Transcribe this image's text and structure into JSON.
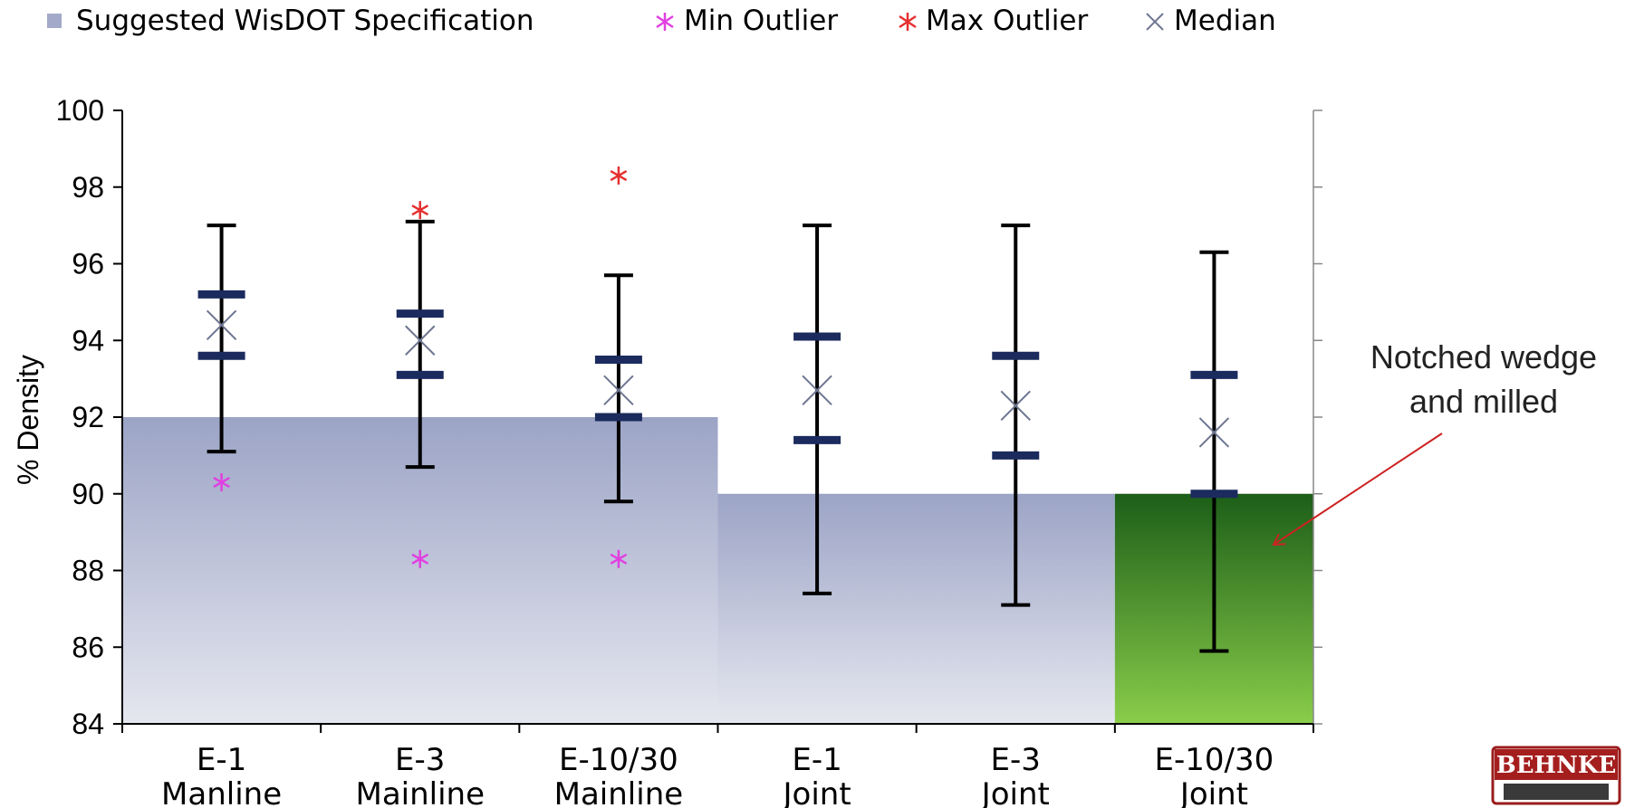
{
  "chart_data": {
    "type": "box",
    "ylabel": "% Density",
    "xlabel": "",
    "ylim": [
      84,
      100
    ],
    "yticks": [
      84,
      86,
      88,
      90,
      92,
      94,
      96,
      98,
      100
    ],
    "legend": {
      "placement": "top",
      "entries": [
        {
          "name": "Suggested WisDOT Specification",
          "marker": "square",
          "color": "#a3aac9"
        },
        {
          "name": "Min Outlier",
          "marker": "asterisk",
          "color": "#e040e0"
        },
        {
          "name": "Max Outlier",
          "marker": "asterisk",
          "color": "#e53030"
        },
        {
          "name": "Median",
          "marker": "x",
          "color": "#6e7590"
        }
      ]
    },
    "categories": [
      {
        "line1": "E-1",
        "line2": "Manline"
      },
      {
        "line1": "E-3",
        "line2": "Mainline"
      },
      {
        "line1": "E-10/30",
        "line2": "Mainline"
      },
      {
        "line1": "E-1",
        "line2": "Joint"
      },
      {
        "line1": "E-3",
        "line2": "Joint"
      },
      {
        "line1": "E-10/30",
        "line2": "Joint"
      }
    ],
    "specification": [
      {
        "categories": [
          0,
          1,
          2
        ],
        "value": 92,
        "color": "#a3aac9"
      },
      {
        "categories": [
          3,
          4
        ],
        "value": 90,
        "color": "#a3aac9"
      },
      {
        "categories": [
          5
        ],
        "value": 90,
        "color": "#5aa232"
      }
    ],
    "boxes": [
      {
        "whisker_low": 91.1,
        "q1": 93.6,
        "median": 94.4,
        "q3": 95.2,
        "whisker_high": 97.0,
        "min_outlier": 90.3,
        "max_outlier": null
      },
      {
        "whisker_low": 90.7,
        "q1": 93.1,
        "median": 94.0,
        "q3": 94.7,
        "whisker_high": 97.1,
        "min_outlier": 88.3,
        "max_outlier": 97.4
      },
      {
        "whisker_low": 89.8,
        "q1": 92.0,
        "median": 92.7,
        "q3": 93.5,
        "whisker_high": 95.7,
        "min_outlier": 88.3,
        "max_outlier": 98.3
      },
      {
        "whisker_low": 87.4,
        "q1": 91.4,
        "median": 92.7,
        "q3": 94.1,
        "whisker_high": 97.0,
        "min_outlier": null,
        "max_outlier": null
      },
      {
        "whisker_low": 87.1,
        "q1": 91.0,
        "median": 92.3,
        "q3": 93.6,
        "whisker_high": 97.0,
        "min_outlier": null,
        "max_outlier": null
      },
      {
        "whisker_low": 85.9,
        "q1": 90.0,
        "median": 91.6,
        "q3": 93.1,
        "whisker_high": 96.3,
        "min_outlier": null,
        "max_outlier": null
      }
    ],
    "annotation": {
      "line1": "Notched wedge",
      "line2": "and milled",
      "points_to_category": 5,
      "arrow_color": "#cc2222"
    }
  },
  "logo": {
    "text": "BEHNKE"
  }
}
